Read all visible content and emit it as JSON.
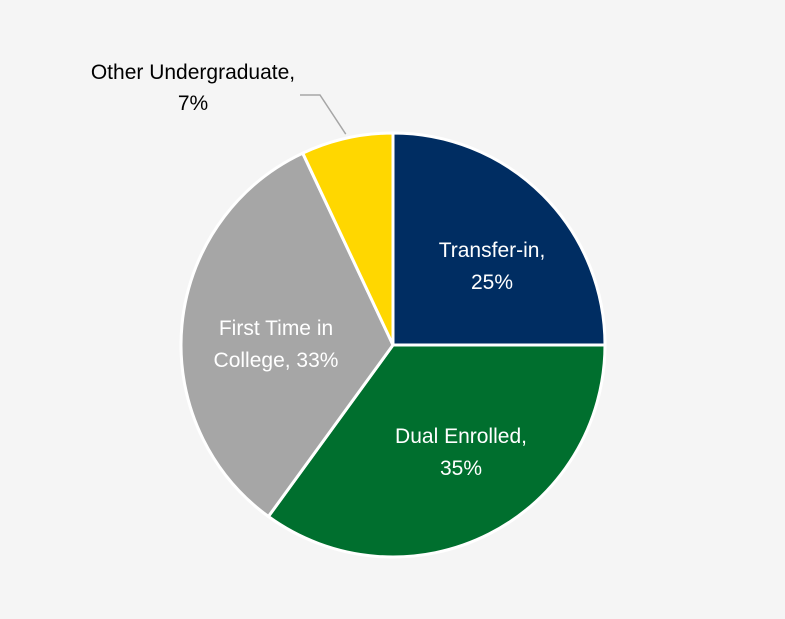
{
  "chart_data": {
    "type": "pie",
    "title": "",
    "slices": [
      {
        "label": "Transfer-in",
        "value": 25,
        "color": "#002D62",
        "label_color": "#FFFFFF",
        "label_lines": [
          "Transfer-in,",
          "25%"
        ]
      },
      {
        "label": "Dual Enrolled",
        "value": 35,
        "color": "#006F2E",
        "label_color": "#FFFFFF",
        "label_lines": [
          "Dual Enrolled,",
          "35%"
        ]
      },
      {
        "label": "First Time in College",
        "value": 33,
        "color": "#A6A6A6",
        "label_color": "#FFFFFF",
        "label_lines": [
          "First Time in",
          "College, 33%"
        ]
      },
      {
        "label": "Other Undergraduate",
        "value": 7,
        "color": "#FFD700",
        "label_color": "#000000",
        "label_lines": [
          "Other Undergraduate,",
          "7%"
        ]
      }
    ],
    "start_angle_deg": 0,
    "direction": "clockwise",
    "legend": "none"
  }
}
